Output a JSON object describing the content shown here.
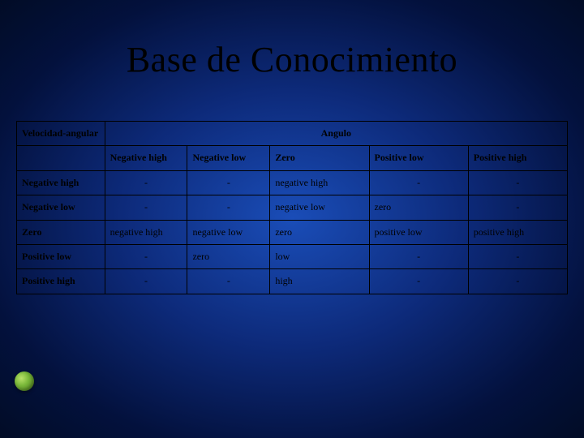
{
  "slide": {
    "title": "Base de Conocimiento",
    "background_gradient": {
      "inner": "#1a4db8",
      "mid": "#0d2a7a",
      "outer": "#000814"
    },
    "bullet_color": "#7ab83a",
    "title_fontsize": 44,
    "title_color": "#000000",
    "title_font": "Times New Roman"
  },
  "table": {
    "type": "table",
    "corner_header": "Velocidad-angular",
    "span_header": "Angulo",
    "col_headers": [
      "Negative high",
      "Negative low",
      "Zero",
      "Positive low",
      "Positive high"
    ],
    "row_headers": [
      "Negative high",
      "Negative low",
      "Zero",
      "Positive low",
      "Positive high"
    ],
    "cells": [
      [
        "-",
        "-",
        "negative high",
        "-",
        "-"
      ],
      [
        "-",
        "-",
        "negative low",
        "zero",
        "-"
      ],
      [
        "negative high",
        "negative low",
        "zero",
        "positive low",
        "positive high"
      ],
      [
        "-",
        "zero",
        "low",
        "-",
        "-"
      ],
      [
        "-",
        "-",
        "high",
        "-",
        "-"
      ]
    ],
    "border_color": "#000000",
    "cell_fontsize": 12,
    "cell_font": "Times New Roman",
    "header_weight": "bold",
    "column_widths_pct": [
      16,
      15,
      15,
      18,
      18,
      18
    ]
  }
}
